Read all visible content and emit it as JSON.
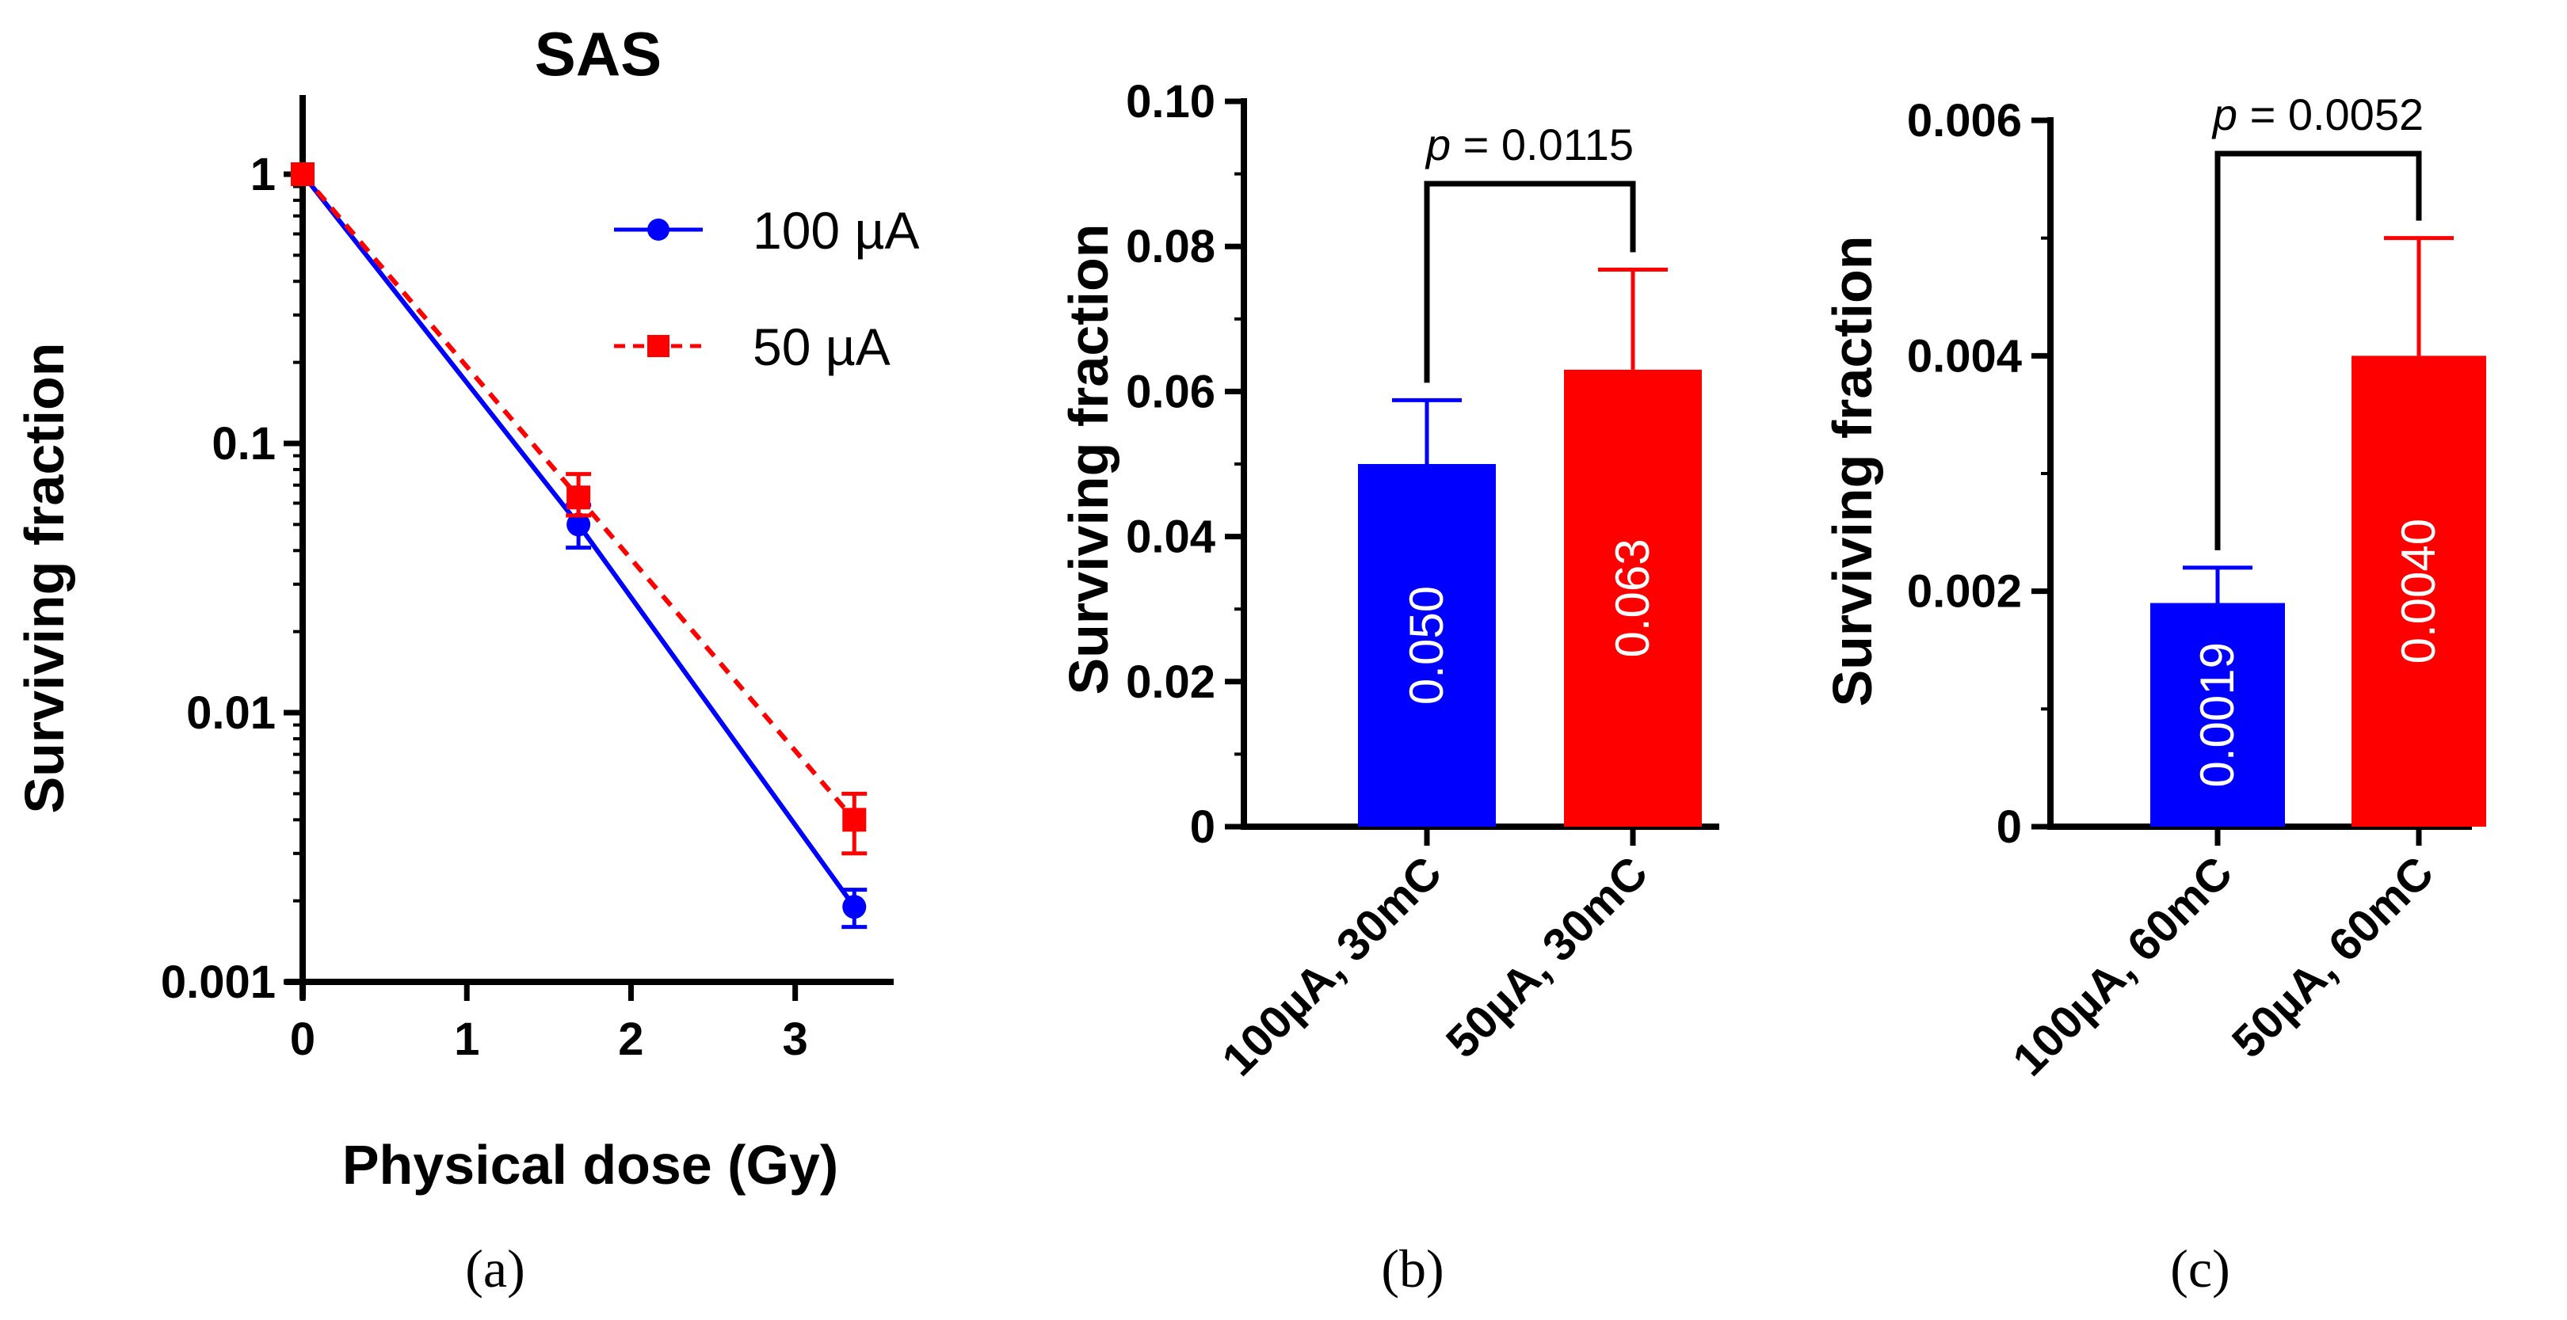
{
  "colors": {
    "blue": "#0000ff",
    "red": "#ff0000",
    "axis": "#000000"
  },
  "chart_data": [
    {
      "type": "line",
      "title": "SAS",
      "xlabel": "Physical dose (Gy)",
      "ylabel": "Surviving fraction",
      "yscale": "log",
      "xlim": [
        0,
        3.6
      ],
      "ylim": [
        0.001,
        1.7
      ],
      "xticks": [
        "0",
        "1",
        "2",
        "3"
      ],
      "yticks": [
        "1",
        "0.1",
        "0.01",
        "0.001"
      ],
      "legend_position": "top-right",
      "series": [
        {
          "name": "100 µA",
          "marker": "circle",
          "dash": "solid",
          "x": [
            0,
            1.68,
            3.36
          ],
          "y": [
            1.0,
            0.05,
            0.0019
          ],
          "err_low": [
            0.0,
            0.009,
            0.0003
          ],
          "err_high": [
            0.0,
            0.009,
            0.0003
          ]
        },
        {
          "name": "50 µA",
          "marker": "square",
          "dash": "dashed",
          "x": [
            0,
            1.68,
            3.36
          ],
          "y": [
            1.0,
            0.063,
            0.004
          ],
          "err_low": [
            0.0,
            0.009,
            0.001
          ],
          "err_high": [
            0.0,
            0.014,
            0.001
          ]
        }
      ],
      "caption": "(a)"
    },
    {
      "type": "bar",
      "ylabel": "Surviving fraction",
      "ylim": [
        0,
        0.1
      ],
      "yticks": [
        "0",
        "0.02",
        "0.04",
        "0.06",
        "0.08",
        "0.10"
      ],
      "categories": [
        "100µA, 30mC",
        "50µA, 30mC"
      ],
      "values": [
        0.05,
        0.063
      ],
      "errors": [
        0.0088,
        0.0138
      ],
      "value_labels": [
        "0.050",
        "0.063"
      ],
      "p_value": {
        "prefix": "p",
        "text": " = 0.0115"
      },
      "caption": "(b)"
    },
    {
      "type": "bar",
      "ylabel": "Surviving fraction",
      "ylim": [
        0,
        0.006
      ],
      "yticks": [
        "0",
        "0.002",
        "0.004",
        "0.006"
      ],
      "categories": [
        "100µA, 60mC",
        "50µA, 60mC"
      ],
      "values": [
        0.0019,
        0.004
      ],
      "errors": [
        0.0003,
        0.001
      ],
      "value_labels": [
        "0.0019",
        "0.0040"
      ],
      "p_value": {
        "prefix": "p",
        "text": " = 0.0052"
      },
      "caption": "(c)"
    }
  ]
}
